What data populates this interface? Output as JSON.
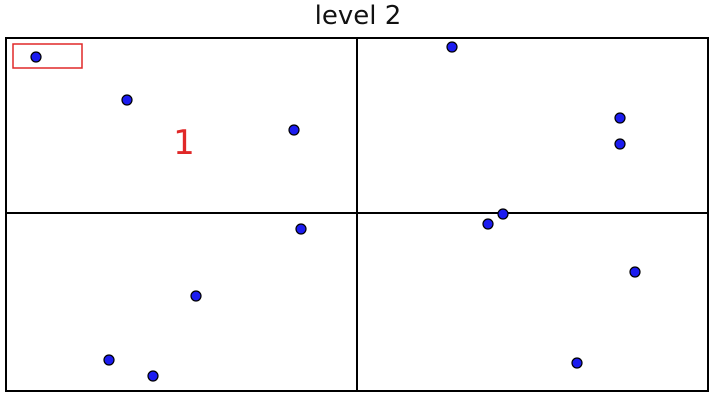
{
  "title": "level 2",
  "colors": {
    "frame": "#000000",
    "point_fill": "#1c1cf0",
    "point_stroke": "#000000",
    "highlight": "#e02828",
    "background": "#ffffff"
  },
  "region_label": "1",
  "points": [
    {
      "id": "p1",
      "quadrant": "top-left"
    },
    {
      "id": "p2",
      "quadrant": "top-left"
    },
    {
      "id": "p3",
      "quadrant": "top-left"
    },
    {
      "id": "p4",
      "quadrant": "top-right"
    },
    {
      "id": "p5",
      "quadrant": "top-right"
    },
    {
      "id": "p6",
      "quadrant": "top-right"
    },
    {
      "id": "p7",
      "quadrant": "bottom-left"
    },
    {
      "id": "p8",
      "quadrant": "bottom-left"
    },
    {
      "id": "p9",
      "quadrant": "bottom-left"
    },
    {
      "id": "p10",
      "quadrant": "bottom-left"
    },
    {
      "id": "p11",
      "quadrant": "bottom-right"
    },
    {
      "id": "p12",
      "quadrant": "bottom-right"
    },
    {
      "id": "p13",
      "quadrant": "bottom-right"
    },
    {
      "id": "p14",
      "quadrant": "bottom-right"
    }
  ]
}
